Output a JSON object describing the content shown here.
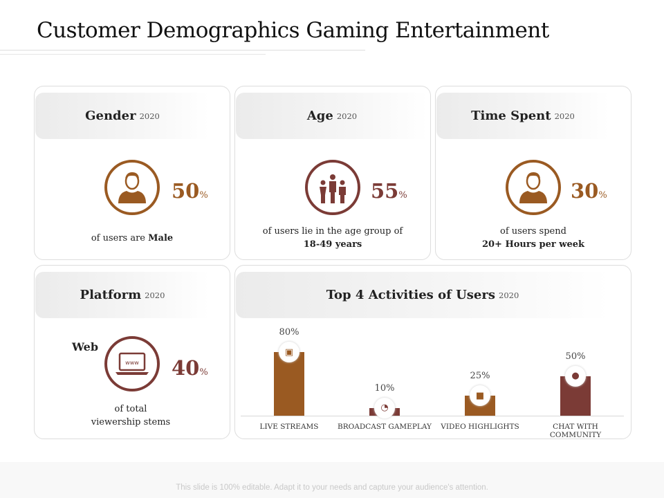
{
  "title": "Customer Demographics Gaming Entertainment",
  "colors": {
    "brown": "#9a5a22",
    "dark_red": "#7b3b36"
  },
  "cards": {
    "gender": {
      "label": "Gender",
      "year": "2020",
      "value": "50",
      "unit": "%",
      "desc": "of users are ",
      "desc_bold": "Male",
      "icon": "male-user-icon"
    },
    "age": {
      "label": "Age",
      "year": "2020",
      "value": "55",
      "unit": "%",
      "desc": "of users lie in the age group of",
      "desc_bold": "18-49 years",
      "icon": "family-icon"
    },
    "time": {
      "label": "Time Spent",
      "year": "2020",
      "value": "30",
      "unit": "%",
      "desc": "of users spend",
      "desc_bold": "20+ Hours per week",
      "icon": "male-user-icon"
    },
    "platform": {
      "label": "Platform",
      "year": "2020",
      "tag": "Web",
      "value": "40",
      "unit": "%",
      "desc1": "of total",
      "desc2": "viewership stems",
      "icon": "laptop-www-icon"
    }
  },
  "chart_data": {
    "type": "bar",
    "title": "Top 4 Activities of Users",
    "year": "2020",
    "categories": [
      "LIVE STREAMS",
      "BROADCAST GAMEPLAY",
      "VIDEO HIGHLIGHTS",
      "CHAT WITH COMMUNITY"
    ],
    "values": [
      80,
      10,
      25,
      50
    ],
    "labels": [
      "80%",
      "10%",
      "25%",
      "50%"
    ],
    "colors": [
      "#9a5a22",
      "#7b3b36",
      "#9a5a22",
      "#7b3b36"
    ],
    "icons": [
      "tv-stream-icon",
      "satellite-dish-icon",
      "video-camera-icon",
      "chat-bubble-icon"
    ],
    "ylim": [
      0,
      100
    ],
    "grid": false
  },
  "footer": "This slide is 100% editable. Adapt it to your needs and capture your audience's attention."
}
